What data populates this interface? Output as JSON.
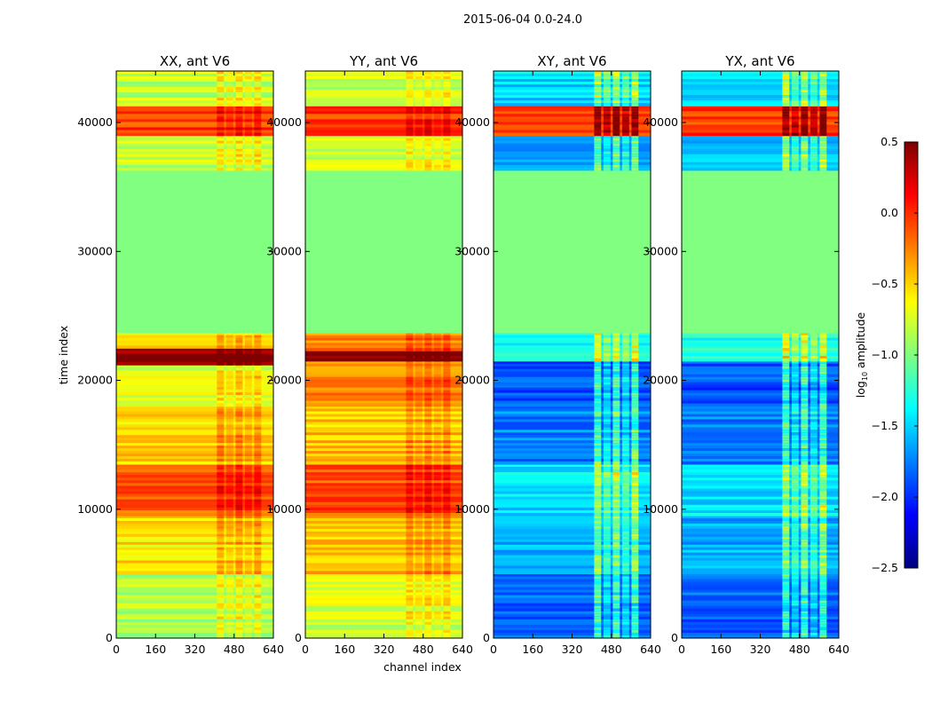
{
  "suptitle": "2015-06-04 0.0-24.0",
  "chart_data": {
    "type": "heatmap",
    "suptitle": "2015-06-04 0.0-24.0",
    "xlabel": "channel index",
    "ylabel": "time index",
    "xlim": [
      0,
      640
    ],
    "ylim": [
      0,
      44000
    ],
    "x_ticks": [
      0,
      160,
      320,
      480,
      640
    ],
    "y_ticks": [
      0,
      10000,
      20000,
      30000,
      40000
    ],
    "colorbar": {
      "label": "log10 amplitude",
      "label_base": "log",
      "label_sub": "10",
      "label_rest": " amplitude",
      "range": [
        -2.5,
        0.5
      ],
      "ticks": [
        0.5,
        0.0,
        -0.5,
        -1.0,
        -1.5,
        -2.0,
        -2.5
      ],
      "tick_labels": [
        "0.5",
        "0.0",
        "−0.5",
        "−1.0",
        "−1.5",
        "−2.0",
        "−2.5"
      ],
      "colormap": "jet"
    },
    "panels": [
      {
        "title": "XX, ant V6",
        "bands": [
          {
            "t0": 0,
            "t1": 5000,
            "level": -0.85
          },
          {
            "t0": 5000,
            "t1": 9500,
            "level": -0.55
          },
          {
            "t0": 9500,
            "t1": 13500,
            "level": -0.15
          },
          {
            "t0": 13500,
            "t1": 18000,
            "level": -0.5
          },
          {
            "t0": 18000,
            "t1": 21200,
            "level": -0.75
          },
          {
            "t0": 21200,
            "t1": 22500,
            "level": 0.45
          },
          {
            "t0": 22500,
            "t1": 23700,
            "level": -0.6
          },
          {
            "t0": 23700,
            "t1": 36300,
            "level": -1.0
          },
          {
            "t0": 36300,
            "t1": 39000,
            "level": -0.8
          },
          {
            "t0": 39000,
            "t1": 41300,
            "level": -0.05
          },
          {
            "t0": 41300,
            "t1": 44000,
            "level": -0.8
          }
        ],
        "column_bands": [
          {
            "c0": 410,
            "c1": 600,
            "delta": 0.25
          }
        ]
      },
      {
        "title": "YY, ant V6",
        "bands": [
          {
            "t0": 0,
            "t1": 5000,
            "level": -0.75
          },
          {
            "t0": 5000,
            "t1": 9500,
            "level": -0.45
          },
          {
            "t0": 9500,
            "t1": 13500,
            "level": -0.1
          },
          {
            "t0": 13500,
            "t1": 18000,
            "level": -0.45
          },
          {
            "t0": 18000,
            "t1": 21500,
            "level": -0.3
          },
          {
            "t0": 21500,
            "t1": 22300,
            "level": 0.45
          },
          {
            "t0": 22300,
            "t1": 23700,
            "level": -0.25
          },
          {
            "t0": 23700,
            "t1": 36300,
            "level": -1.0
          },
          {
            "t0": 36300,
            "t1": 39000,
            "level": -0.8
          },
          {
            "t0": 39000,
            "t1": 41300,
            "level": -0.05
          },
          {
            "t0": 41300,
            "t1": 44000,
            "level": -0.8
          }
        ],
        "column_bands": [
          {
            "c0": 410,
            "c1": 600,
            "delta": 0.2
          }
        ]
      },
      {
        "title": "XY, ant V6",
        "bands": [
          {
            "t0": 0,
            "t1": 5000,
            "level": -1.85
          },
          {
            "t0": 5000,
            "t1": 9500,
            "level": -1.6
          },
          {
            "t0": 9500,
            "t1": 13500,
            "level": -1.45
          },
          {
            "t0": 13500,
            "t1": 18000,
            "level": -1.75
          },
          {
            "t0": 18000,
            "t1": 21500,
            "level": -1.9
          },
          {
            "t0": 21500,
            "t1": 23700,
            "level": -1.3
          },
          {
            "t0": 23700,
            "t1": 36300,
            "level": -1.0
          },
          {
            "t0": 36300,
            "t1": 39000,
            "level": -1.6
          },
          {
            "t0": 39000,
            "t1": 41300,
            "level": -0.05
          },
          {
            "t0": 41300,
            "t1": 44000,
            "level": -1.5
          }
        ],
        "column_bands": [
          {
            "c0": 410,
            "c1": 600,
            "delta": 0.7
          }
        ]
      },
      {
        "title": "YX, ant V6",
        "bands": [
          {
            "t0": 0,
            "t1": 5000,
            "level": -1.85
          },
          {
            "t0": 5000,
            "t1": 9500,
            "level": -1.6
          },
          {
            "t0": 9500,
            "t1": 13500,
            "level": -1.45
          },
          {
            "t0": 13500,
            "t1": 18000,
            "level": -1.75
          },
          {
            "t0": 18000,
            "t1": 21500,
            "level": -1.9
          },
          {
            "t0": 21500,
            "t1": 23700,
            "level": -1.3
          },
          {
            "t0": 23700,
            "t1": 36300,
            "level": -1.0
          },
          {
            "t0": 36300,
            "t1": 39000,
            "level": -1.6
          },
          {
            "t0": 39000,
            "t1": 41300,
            "level": -0.05
          },
          {
            "t0": 41300,
            "t1": 44000,
            "level": -1.5
          }
        ],
        "column_bands": [
          {
            "c0": 410,
            "c1": 600,
            "delta": 0.7
          }
        ]
      }
    ]
  }
}
